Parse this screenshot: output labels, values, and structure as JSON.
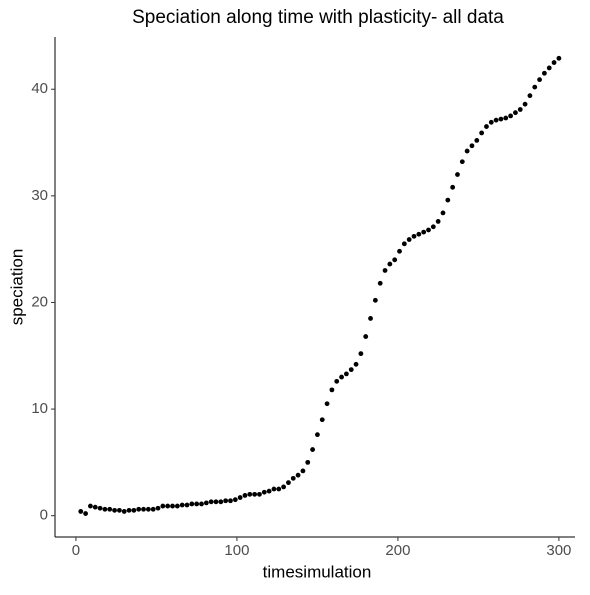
{
  "chart_data": {
    "type": "scatter",
    "title": "Speciation along time with plasticity- all data",
    "x_label": "timesimulation",
    "y_label": "speciation",
    "xlim": [
      -13,
      310
    ],
    "ylim": [
      -2,
      44.9
    ],
    "xticks": [
      0,
      100,
      200,
      300
    ],
    "yticks": [
      0,
      10,
      20,
      30,
      40
    ],
    "grid": false,
    "color": "#000000",
    "x": [
      3,
      6,
      9,
      12,
      15,
      18,
      21,
      24,
      27,
      30,
      33,
      36,
      39,
      42,
      45,
      48,
      51,
      54,
      57,
      60,
      63,
      66,
      69,
      72,
      75,
      78,
      81,
      84,
      87,
      90,
      93,
      96,
      99,
      102,
      105,
      108,
      111,
      114,
      117,
      120,
      123,
      126,
      129,
      132,
      135,
      138,
      141,
      144,
      147,
      150,
      153,
      156,
      159,
      162,
      165,
      168,
      171,
      174,
      177,
      180,
      183,
      186,
      189,
      192,
      195,
      198,
      201,
      204,
      207,
      210,
      213,
      216,
      219,
      222,
      225,
      228,
      231,
      234,
      237,
      240,
      243,
      246,
      249,
      252,
      255,
      258,
      261,
      264,
      267,
      270,
      273,
      276,
      279,
      282,
      285,
      288,
      291,
      294,
      297,
      300
    ],
    "values": [
      0.4,
      0.2,
      0.9,
      0.8,
      0.7,
      0.6,
      0.6,
      0.5,
      0.5,
      0.4,
      0.5,
      0.5,
      0.6,
      0.6,
      0.6,
      0.6,
      0.7,
      0.9,
      0.9,
      0.9,
      0.9,
      1.0,
      1.0,
      1.1,
      1.1,
      1.1,
      1.2,
      1.3,
      1.3,
      1.3,
      1.4,
      1.4,
      1.5,
      1.7,
      1.9,
      2.0,
      2.0,
      2.0,
      2.2,
      2.3,
      2.5,
      2.5,
      2.7,
      3.1,
      3.5,
      3.8,
      4.2,
      5.0,
      6.2,
      7.6,
      9.0,
      10.5,
      11.8,
      12.6,
      13.0,
      13.3,
      13.7,
      14.2,
      15.2,
      16.8,
      18.5,
      20.2,
      21.8,
      23.0,
      23.6,
      24.0,
      24.8,
      25.5,
      25.9,
      26.2,
      26.4,
      26.6,
      26.8,
      27.1,
      27.6,
      28.4,
      29.6,
      30.8,
      32.0,
      33.2,
      34.2,
      34.7,
      35.2,
      35.9,
      36.5,
      36.9,
      37.1,
      37.2,
      37.3,
      37.5,
      37.8,
      38.1,
      38.6,
      39.4,
      40.2,
      40.9,
      41.5,
      42.0,
      42.5,
      42.9
    ]
  }
}
